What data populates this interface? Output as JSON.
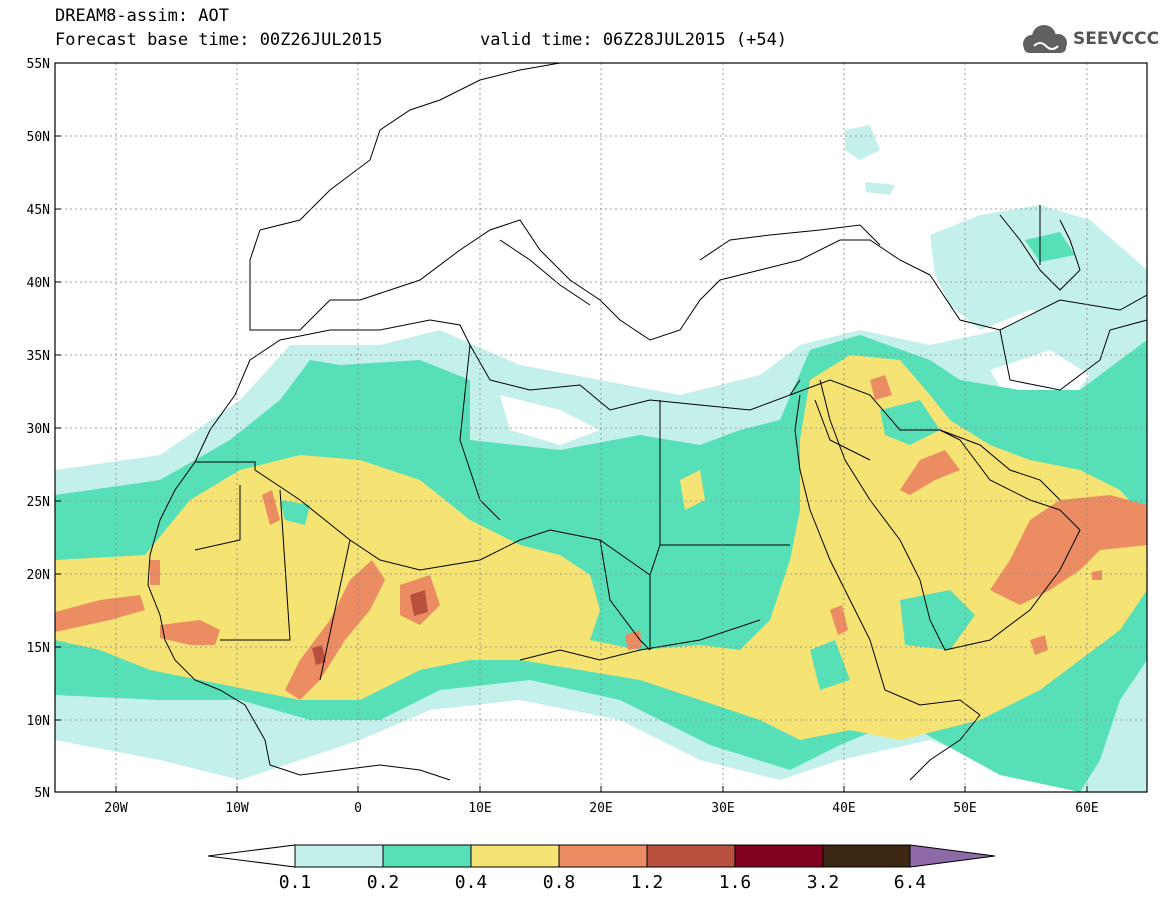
{
  "title": {
    "line1": "DREAM8-assim: AOT",
    "line2": "Forecast base time: 00Z26JUL2015",
    "valid": "valid time: 06Z28JUL2015 (+54)"
  },
  "logo": {
    "text": "SEEVCCC",
    "icon": "cloud-icon"
  },
  "axes": {
    "lon_ticks": [
      "20W",
      "10W",
      "0",
      "10E",
      "20E",
      "30E",
      "40E",
      "50E",
      "60E"
    ],
    "lat_ticks": [
      "55N",
      "50N",
      "45N",
      "40N",
      "35N",
      "30N",
      "25N",
      "20N",
      "15N",
      "10N",
      "5N"
    ],
    "lon_range": [
      -25,
      65
    ],
    "lat_range": [
      5,
      55
    ],
    "grid": true
  },
  "colorbar": {
    "labels": [
      "0.1",
      "0.2",
      "0.4",
      "0.8",
      "1.2",
      "1.6",
      "3.2",
      "6.4"
    ],
    "colors": [
      "#c4f0eb",
      "#57e0b8",
      "#f5e374",
      "#ec8c63",
      "#b8503e",
      "#800020",
      "#3d2815",
      "#8e6aa8"
    ],
    "under_color": "#ffffff"
  }
}
